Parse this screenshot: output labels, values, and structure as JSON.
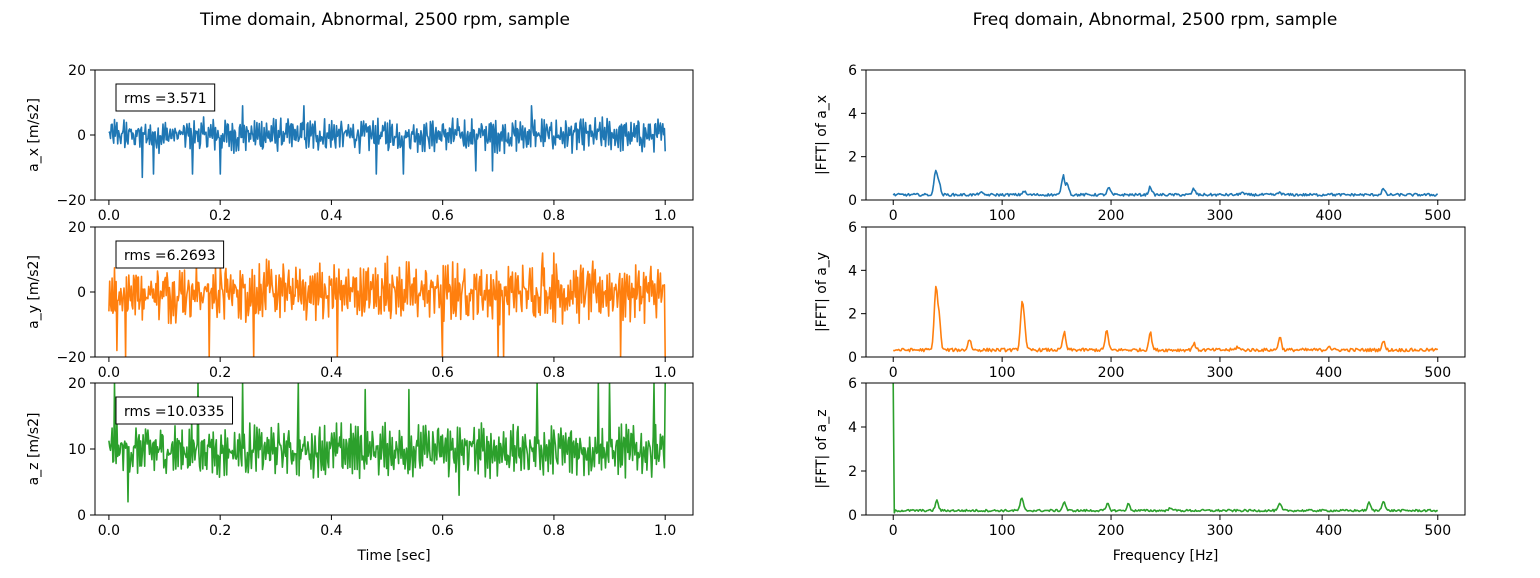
{
  "colors": {
    "ax": "#1f77b4",
    "ay": "#ff7f0e",
    "az": "#2ca02c"
  },
  "chart_data": [
    {
      "type": "line",
      "title": "Time domain, Abnormal, 2500 rpm, sample",
      "xlabel": "",
      "ylabel": "a_x [m/s2]",
      "xlim": [
        -0.025,
        1.05
      ],
      "ylim": [
        -20,
        20
      ],
      "xticks": [
        "0.0",
        "0.2",
        "0.4",
        "0.6",
        "0.8",
        "1.0"
      ],
      "yticks": [
        "−20",
        "0",
        "20"
      ],
      "annotation": "rms =3.571",
      "series": [
        {
          "color_key": "ax",
          "x_range": [
            0,
            1
          ],
          "points": 700,
          "envelope": [
            [
              0,
              -3,
              10
            ],
            [
              0.05,
              -2,
              10
            ],
            [
              0.1,
              -2,
              10
            ],
            [
              0.2,
              -3,
              10
            ],
            [
              0.3,
              -3,
              10
            ],
            [
              0.4,
              -3,
              10
            ],
            [
              0.5,
              -2,
              10
            ],
            [
              0.6,
              -2,
              10
            ],
            [
              0.7,
              -2,
              9
            ],
            [
              0.8,
              -2,
              9
            ],
            [
              0.9,
              -2,
              9
            ],
            [
              1.0,
              -2,
              10
            ]
          ],
          "mean": 0,
          "amplitude": 4.2,
          "spikes": [
            [
              0.06,
              -13
            ],
            [
              0.08,
              -12
            ],
            [
              0.15,
              -12
            ],
            [
              0.2,
              -12
            ],
            [
              0.24,
              9
            ],
            [
              0.35,
              9
            ],
            [
              0.48,
              -12
            ],
            [
              0.53,
              -12
            ],
            [
              0.66,
              -11
            ],
            [
              0.69,
              -11
            ],
            [
              0.76,
              9
            ],
            [
              1.0,
              10.5
            ],
            [
              1.0,
              -5
            ]
          ]
        }
      ]
    },
    {
      "type": "line",
      "xlabel": "",
      "ylabel": "a_y [m/s2]",
      "xlim": [
        -0.025,
        1.05
      ],
      "ylim": [
        -20,
        20
      ],
      "xticks": [
        "0.0",
        "0.2",
        "0.4",
        "0.6",
        "0.8",
        "1.0"
      ],
      "yticks": [
        "−20",
        "0",
        "20"
      ],
      "annotation": "rms =6.2693",
      "series": [
        {
          "color_key": "ay",
          "x_range": [
            0,
            1
          ],
          "points": 700,
          "mean": 0,
          "amplitude": 7.5,
          "spikes": [
            [
              0.015,
              -18
            ],
            [
              0.03,
              -20
            ],
            [
              0.18,
              -20
            ],
            [
              0.26,
              -20
            ],
            [
              0.41,
              -20
            ],
            [
              0.6,
              -20
            ],
            [
              0.7,
              -20
            ],
            [
              0.71,
              -20
            ],
            [
              0.78,
              -20
            ],
            [
              0.92,
              -20
            ],
            [
              1.0,
              -20
            ],
            [
              0.8,
              12
            ],
            [
              0.78,
              12
            ],
            [
              0.5,
              11
            ]
          ]
        }
      ]
    },
    {
      "type": "line",
      "xlabel": "Time [sec]",
      "ylabel": "a_z [m/s2]",
      "xlim": [
        -0.025,
        1.05
      ],
      "ylim": [
        0,
        20
      ],
      "xticks": [
        "0.0",
        "0.2",
        "0.4",
        "0.6",
        "0.8",
        "1.0"
      ],
      "yticks": [
        "0",
        "10",
        "20"
      ],
      "annotation": "rms =10.0335",
      "series": [
        {
          "color_key": "az",
          "x_range": [
            0,
            1
          ],
          "points": 700,
          "mean": 9.8,
          "amplitude": 3.3,
          "spikes": [
            [
              0.01,
              20
            ],
            [
              0.035,
              2
            ],
            [
              0.16,
              20
            ],
            [
              0.24,
              20
            ],
            [
              0.34,
              20
            ],
            [
              0.46,
              19
            ],
            [
              0.54,
              19
            ],
            [
              0.77,
              20
            ],
            [
              0.88,
              20
            ],
            [
              0.9,
              20
            ],
            [
              0.98,
              20
            ],
            [
              1.0,
              20
            ],
            [
              0.63,
              3
            ]
          ]
        }
      ]
    },
    {
      "type": "line",
      "title": "Freq domain, Abnormal, 2500 rpm, sample",
      "xlabel": "",
      "ylabel": "|FFT| of a_x",
      "xlim": [
        -25,
        525
      ],
      "ylim": [
        0,
        6
      ],
      "xticks": [
        "0",
        "100",
        "200",
        "300",
        "400",
        "500"
      ],
      "yticks": [
        "0",
        "2",
        "4",
        "6"
      ],
      "series": [
        {
          "color_key": "ax",
          "x_range": [
            0,
            500
          ],
          "points": 500,
          "base": 0.18,
          "noise": 0.12,
          "peaks": [
            [
              39,
              1.3
            ],
            [
              42,
              0.7
            ],
            [
              80,
              0.3
            ],
            [
              120,
              0.35
            ],
            [
              156,
              1.05
            ],
            [
              160,
              0.7
            ],
            [
              198,
              0.5
            ],
            [
              236,
              0.55
            ],
            [
              276,
              0.45
            ],
            [
              320,
              0.3
            ],
            [
              355,
              0.3
            ],
            [
              400,
              0.25
            ],
            [
              450,
              0.45
            ]
          ]
        }
      ]
    },
    {
      "type": "line",
      "xlabel": "",
      "ylabel": "|FFT| of a_y",
      "xlim": [
        -25,
        525
      ],
      "ylim": [
        0,
        6
      ],
      "xticks": [
        "0",
        "100",
        "200",
        "300",
        "400",
        "500"
      ],
      "yticks": [
        "0",
        "2",
        "4",
        "6"
      ],
      "series": [
        {
          "color_key": "ay",
          "x_range": [
            0,
            500
          ],
          "points": 500,
          "base": 0.25,
          "noise": 0.15,
          "peaks": [
            [
              39,
              3.0
            ],
            [
              42,
              1.8
            ],
            [
              70,
              0.75
            ],
            [
              118,
              1.95
            ],
            [
              120,
              1.4
            ],
            [
              157,
              1.05
            ],
            [
              196,
              1.15
            ],
            [
              236,
              1.05
            ],
            [
              276,
              0.55
            ],
            [
              316,
              0.4
            ],
            [
              355,
              0.85
            ],
            [
              400,
              0.45
            ],
            [
              450,
              0.65
            ]
          ]
        }
      ]
    },
    {
      "type": "line",
      "xlabel": "Frequency [Hz]",
      "ylabel": "|FFT| of a_z",
      "xlim": [
        -25,
        525
      ],
      "ylim": [
        0,
        6
      ],
      "xticks": [
        "0",
        "100",
        "200",
        "300",
        "400",
        "500"
      ],
      "yticks": [
        "0",
        "2",
        "4",
        "6"
      ],
      "series": [
        {
          "color_key": "az",
          "x_range": [
            0,
            500
          ],
          "points": 500,
          "base": 0.15,
          "noise": 0.1,
          "dc": 6.0,
          "peaks": [
            [
              40,
              0.6
            ],
            [
              118,
              0.7
            ],
            [
              157,
              0.55
            ],
            [
              197,
              0.45
            ],
            [
              216,
              0.45
            ],
            [
              255,
              0.3
            ],
            [
              355,
              0.45
            ],
            [
              437,
              0.5
            ],
            [
              450,
              0.6
            ]
          ]
        }
      ]
    }
  ]
}
